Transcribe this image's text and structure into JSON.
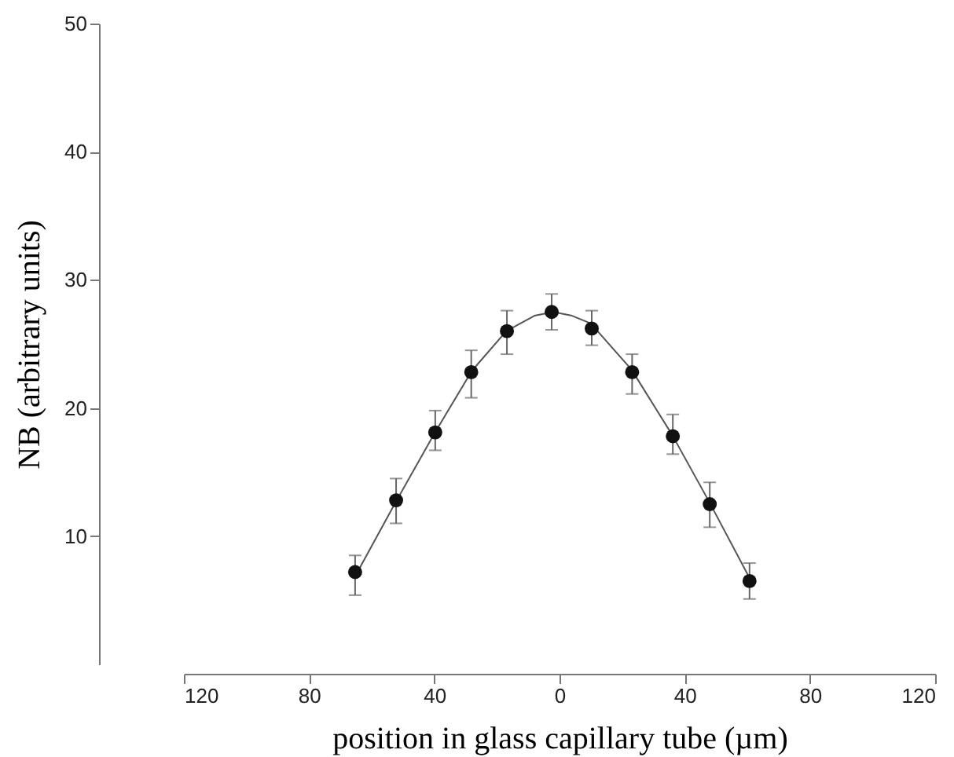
{
  "chart_data": {
    "type": "scatter",
    "xlabel": "position in glass capillary tube (µm)",
    "ylabel": "NB (arbitrary units)",
    "xlim": [
      -120,
      120
    ],
    "xticks": [
      {
        "value": -120,
        "label": "120"
      },
      {
        "value": -80,
        "label": "80"
      },
      {
        "value": -40,
        "label": "40"
      },
      0,
      40,
      80,
      120
    ],
    "ylim": [
      0,
      50
    ],
    "yticks": [
      10,
      20,
      30,
      40,
      50
    ],
    "grid": false,
    "series": [
      {
        "type": "line",
        "color": "#555555",
        "line_style": "solid",
        "marker": "none",
        "x": [
          -65,
          -52,
          -40,
          -28,
          -17,
          -8,
          -2,
          4,
          10,
          23,
          36,
          48,
          61
        ],
        "values": [
          7.0,
          12.8,
          18.0,
          22.9,
          26.0,
          27.2,
          27.5,
          27.2,
          26.6,
          23.0,
          17.9,
          12.6,
          6.6
        ]
      },
      {
        "type": "scatter",
        "color": "#111111",
        "marker": "circle",
        "x": [
          -65.3,
          -52.2,
          -39.7,
          -28.2,
          -16.8,
          -2.5,
          10.3,
          23.2,
          36.2,
          48,
          60.7
        ],
        "values": [
          7.2,
          12.8,
          18.1,
          22.8,
          26.0,
          27.5,
          26.2,
          22.8,
          17.8,
          12.5,
          6.5
        ],
        "errors": [
          [
            5.4,
            8.5
          ],
          [
            11.0,
            14.5
          ],
          [
            16.7,
            19.8
          ],
          [
            20.8,
            24.5
          ],
          [
            24.2,
            27.6
          ],
          [
            26.1,
            28.9
          ],
          [
            24.9,
            27.6
          ],
          [
            21.1,
            24.2
          ],
          [
            16.4,
            19.5
          ],
          [
            10.7,
            14.2
          ],
          [
            5.1,
            7.9
          ]
        ]
      }
    ]
  }
}
